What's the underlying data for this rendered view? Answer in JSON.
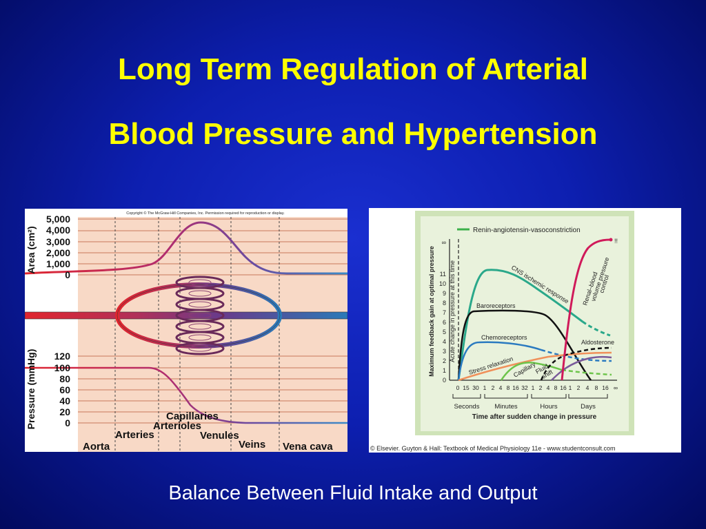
{
  "slide": {
    "title_line1": "Long Term Regulation of Arterial",
    "title_line2": "Blood Pressure and Hypertension",
    "caption": "Balance Between Fluid Intake and Output"
  },
  "left_figure": {
    "copyright": "Copyright © The McGraw-Hill Companies, Inc. Permission required for reproduction or display.",
    "area_axis_label": "Area (cm²)",
    "area_ticks": [
      "5,000",
      "4,000",
      "3,000",
      "2,000",
      "1,000",
      "0"
    ],
    "pressure_axis_label": "Pressure (mmHg)",
    "pressure_ticks": [
      "120",
      "100",
      "80",
      "60",
      "40",
      "20",
      "0"
    ],
    "vessel_labels": {
      "aorta": "Aorta",
      "arteries": "Arteries",
      "arterioles": "Arterioles",
      "capillaries": "Capillaries",
      "venules": "Venules",
      "veins": "Veins",
      "vena_cava": "Vena cava"
    }
  },
  "right_figure": {
    "legend": "Renin-angiotensin-vasoconstriction",
    "y_axis_label": "Maximum feedback gain at optimal pressure",
    "y_ticks": [
      "0",
      "1",
      "2",
      "3",
      "4",
      "5",
      "6",
      "7",
      "8",
      "9",
      "10",
      "11",
      "∞"
    ],
    "infinity_note": "!!",
    "dashed_line_label": "Acute change in pressure at this time",
    "curve_labels": {
      "cns": "CNS ischemic response",
      "baroreceptors": "Baroreceptors",
      "chemoreceptors": "Chemoreceptors",
      "stress": "Stress relaxation",
      "capillary": "Capillary",
      "fluid": "Fluid",
      "shift": "shift",
      "renal1": "Renal–blood",
      "renal2": "volume pressure",
      "renal3": "control",
      "aldosterone": "Aldosterone"
    },
    "x_ticks": [
      "0",
      "15",
      "30",
      "1",
      "2",
      "4",
      "8",
      "16",
      "32",
      "1",
      "2",
      "4",
      "8",
      "16",
      "1",
      "2",
      "4",
      "8",
      "16",
      "∞"
    ],
    "x_groups": [
      "Seconds",
      "Minutes",
      "Hours",
      "Days"
    ],
    "x_axis_label": "Time after sudden change in pressure",
    "copyright": "© Elsevier. Guyton & Hall: Textbook of Medical Physiology 11e - www.studentconsult.com"
  }
}
